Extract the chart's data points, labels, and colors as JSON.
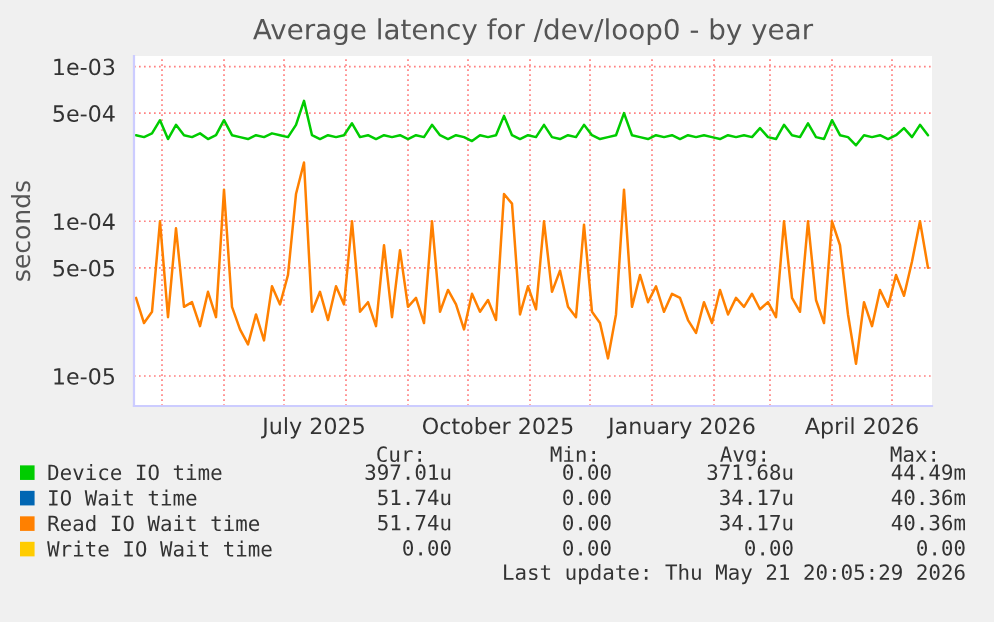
{
  "chart_data": {
    "type": "line",
    "title": "Average latency for /dev/loop0 - by year",
    "ylabel": "seconds",
    "x": [
      "2025-04-18",
      "2025-04-22",
      "2025-04-26",
      "2025-04-30",
      "2025-05-04",
      "2025-05-08",
      "2025-05-12",
      "2025-05-16",
      "2025-05-20",
      "2025-05-24",
      "2025-05-28",
      "2025-06-01",
      "2025-06-05",
      "2025-06-09",
      "2025-06-13",
      "2025-06-17",
      "2025-06-21",
      "2025-06-25",
      "2025-06-29",
      "2025-07-03",
      "2025-07-07",
      "2025-07-11",
      "2025-07-15",
      "2025-07-19",
      "2025-07-23",
      "2025-07-27",
      "2025-07-31",
      "2025-08-04",
      "2025-08-08",
      "2025-08-12",
      "2025-08-16",
      "2025-08-20",
      "2025-08-24",
      "2025-08-28",
      "2025-09-01",
      "2025-09-05",
      "2025-09-09",
      "2025-09-13",
      "2025-09-17",
      "2025-09-21",
      "2025-09-25",
      "2025-09-29",
      "2025-10-03",
      "2025-10-07",
      "2025-10-11",
      "2025-10-15",
      "2025-10-19",
      "2025-10-23",
      "2025-10-27",
      "2025-10-31",
      "2025-11-04",
      "2025-11-08",
      "2025-11-12",
      "2025-11-16",
      "2025-11-20",
      "2025-11-24",
      "2025-11-28",
      "2025-12-02",
      "2025-12-06",
      "2025-12-10",
      "2025-12-14",
      "2025-12-18",
      "2025-12-22",
      "2025-12-26",
      "2025-12-30",
      "2026-01-03",
      "2026-01-07",
      "2026-01-11",
      "2026-01-15",
      "2026-01-19",
      "2026-01-23",
      "2026-01-27",
      "2026-01-31",
      "2026-02-04",
      "2026-02-08",
      "2026-02-12",
      "2026-02-16",
      "2026-02-20",
      "2026-02-24",
      "2026-02-28",
      "2026-03-04",
      "2026-03-08",
      "2026-03-12",
      "2026-03-16",
      "2026-03-20",
      "2026-03-24",
      "2026-03-28",
      "2026-04-01",
      "2026-04-05",
      "2026-04-09",
      "2026-04-13",
      "2026-04-17",
      "2026-04-21",
      "2026-04-25",
      "2026-04-29",
      "2026-05-03",
      "2026-05-07",
      "2026-05-11",
      "2026-05-15",
      "2026-05-19"
    ],
    "series": [
      {
        "name": "Device IO time",
        "color": "#00cc00",
        "values": [
          0.00036,
          0.00035,
          0.00037,
          0.00045,
          0.00034,
          0.00042,
          0.00036,
          0.00035,
          0.00037,
          0.00034,
          0.00036,
          0.00045,
          0.00036,
          0.00035,
          0.00034,
          0.00036,
          0.00035,
          0.00037,
          0.00036,
          0.00035,
          0.00042,
          0.0006,
          0.00036,
          0.00034,
          0.00036,
          0.00035,
          0.00036,
          0.00043,
          0.00035,
          0.00036,
          0.00034,
          0.00036,
          0.00035,
          0.00036,
          0.00034,
          0.00036,
          0.00035,
          0.00042,
          0.00036,
          0.00034,
          0.00036,
          0.00035,
          0.00033,
          0.00036,
          0.00035,
          0.00036,
          0.00048,
          0.00036,
          0.00034,
          0.00036,
          0.00035,
          0.00042,
          0.00035,
          0.00034,
          0.00036,
          0.00035,
          0.00042,
          0.00036,
          0.00034,
          0.00035,
          0.00036,
          0.0005,
          0.00036,
          0.00035,
          0.00034,
          0.00036,
          0.00035,
          0.00036,
          0.00034,
          0.00036,
          0.00035,
          0.00036,
          0.00035,
          0.00034,
          0.00036,
          0.00035,
          0.00036,
          0.00035,
          0.0004,
          0.00035,
          0.00034,
          0.00042,
          0.00036,
          0.00035,
          0.00043,
          0.00035,
          0.00034,
          0.00045,
          0.00036,
          0.00035,
          0.00031,
          0.00036,
          0.00035,
          0.00036,
          0.00034,
          0.00036,
          0.0004,
          0.00035,
          0.00042,
          0.00036
        ]
      },
      {
        "name": "IO Wait time",
        "color": "#0066b3",
        "values": [
          null,
          null,
          null,
          null,
          null,
          null,
          null,
          null,
          null,
          null,
          null,
          null,
          null,
          null,
          null,
          null,
          null,
          null,
          null,
          null,
          null,
          null,
          null,
          null,
          null,
          null,
          null,
          null,
          null,
          null,
          null,
          null,
          null,
          null,
          null,
          null,
          null,
          null,
          null,
          null,
          null,
          null,
          null,
          null,
          null,
          null,
          null,
          null,
          null,
          null,
          null,
          null,
          null,
          null,
          null,
          null,
          null,
          null,
          null,
          null,
          null,
          null,
          null,
          null,
          null,
          null,
          null,
          null,
          null,
          null,
          null,
          null,
          null,
          null,
          null,
          null,
          null,
          null,
          null,
          null,
          null,
          null,
          null,
          null,
          null,
          null,
          null,
          null,
          null,
          null,
          null,
          null,
          null,
          null,
          null,
          null,
          null,
          null,
          null,
          null
        ]
      },
      {
        "name": "Read IO Wait time",
        "color": "#ff8000",
        "values": [
          3.2e-05,
          2.2e-05,
          2.6e-05,
          0.0001,
          2.4e-05,
          9e-05,
          2.8e-05,
          3e-05,
          2.1e-05,
          3.5e-05,
          2.4e-05,
          0.00016,
          2.8e-05,
          2e-05,
          1.6e-05,
          2.5e-05,
          1.7e-05,
          3.8e-05,
          2.9e-05,
          4.5e-05,
          0.00015,
          0.00024,
          2.6e-05,
          3.5e-05,
          2.3e-05,
          3.8e-05,
          2.9e-05,
          0.0001,
          2.6e-05,
          3e-05,
          2.1e-05,
          7e-05,
          2.4e-05,
          6.5e-05,
          2.8e-05,
          3.2e-05,
          2.2e-05,
          0.0001,
          2.6e-05,
          3.6e-05,
          2.9e-05,
          2e-05,
          3.4e-05,
          2.6e-05,
          3.1e-05,
          2.3e-05,
          0.00015,
          0.00013,
          2.5e-05,
          3.8e-05,
          2.7e-05,
          0.0001,
          3.5e-05,
          4.8e-05,
          2.8e-05,
          2.4e-05,
          9.5e-05,
          2.6e-05,
          2.2e-05,
          1.3e-05,
          2.5e-05,
          0.00016,
          2.8e-05,
          4.5e-05,
          3e-05,
          3.8e-05,
          2.6e-05,
          3.4e-05,
          3.2e-05,
          2.3e-05,
          1.9e-05,
          3e-05,
          2.2e-05,
          3.6e-05,
          2.5e-05,
          3.2e-05,
          2.8e-05,
          3.4e-05,
          2.7e-05,
          3e-05,
          2.4e-05,
          0.0001,
          3.2e-05,
          2.6e-05,
          0.0001,
          3.1e-05,
          2.2e-05,
          0.0001,
          7e-05,
          2.5e-05,
          1.2e-05,
          3e-05,
          2.1e-05,
          3.6e-05,
          2.8e-05,
          4.5e-05,
          3.3e-05,
          5.5e-05,
          0.0001,
          5e-05
        ]
      },
      {
        "name": "Write IO Wait time",
        "color": "#ffcc00",
        "values": [
          null,
          null,
          null,
          null,
          null,
          null,
          null,
          null,
          null,
          null,
          null,
          null,
          null,
          null,
          null,
          null,
          null,
          null,
          null,
          null,
          null,
          null,
          null,
          null,
          null,
          null,
          null,
          null,
          null,
          null,
          null,
          null,
          null,
          null,
          null,
          null,
          null,
          null,
          null,
          null,
          null,
          null,
          null,
          null,
          null,
          null,
          null,
          null,
          null,
          null,
          null,
          null,
          null,
          null,
          null,
          null,
          null,
          null,
          null,
          null,
          null,
          null,
          null,
          null,
          null,
          null,
          null,
          null,
          null,
          null,
          null,
          null,
          null,
          null,
          null,
          null,
          null,
          null,
          null,
          null,
          null,
          null,
          null,
          null,
          null,
          null,
          null,
          null,
          null,
          null,
          null,
          null,
          null,
          null,
          null,
          null,
          null,
          null,
          null,
          null
        ]
      }
    ],
    "log": "y",
    "xlim": [
      "2025-04-17",
      "2026-05-21"
    ],
    "xticks": [
      {
        "value": "2025-05-01",
        "label": null
      },
      {
        "value": "2025-06-01",
        "label": null
      },
      {
        "value": "2025-07-01",
        "label": null
      },
      {
        "value": "2025-07-16",
        "label": "July 2025"
      },
      {
        "value": "2025-08-01",
        "label": null
      },
      {
        "value": "2025-09-01",
        "label": null
      },
      {
        "value": "2025-10-01",
        "label": null
      },
      {
        "value": "2025-10-16",
        "label": "October 2025"
      },
      {
        "value": "2025-11-01",
        "label": null
      },
      {
        "value": "2025-12-01",
        "label": null
      },
      {
        "value": "2026-01-01",
        "label": null
      },
      {
        "value": "2026-01-16",
        "label": "January 2026"
      },
      {
        "value": "2026-02-01",
        "label": null
      },
      {
        "value": "2026-03-01",
        "label": null
      },
      {
        "value": "2026-04-01",
        "label": null
      },
      {
        "value": "2026-04-16",
        "label": "April 2026"
      },
      {
        "value": "2026-05-01",
        "label": null
      }
    ],
    "ylim": [
      6.4e-06,
      0.00117
    ],
    "yticks": [
      {
        "value": 1e-05,
        "label": "1e-05"
      },
      {
        "value": 5e-05,
        "label": "5e-05"
      },
      {
        "value": 0.0001,
        "label": "1e-04"
      },
      {
        "value": 0.0005,
        "label": "5e-04"
      },
      {
        "value": 0.001,
        "label": "1e-03"
      }
    ],
    "grid": true,
    "legend": "bottom",
    "annotations": [
      "Cur:",
      "Min:",
      "Avg:",
      "Max:",
      "397.01u",
      "0.00",
      "371.68u",
      "44.49m",
      "51.74u",
      "0.00",
      "34.17u",
      "40.36m",
      "51.74u",
      "0.00",
      "34.17u",
      "40.36m",
      "0.00",
      "0.00",
      "0.00",
      "0.00",
      "Last update: Thu May 21 20:05:29 2026"
    ]
  }
}
